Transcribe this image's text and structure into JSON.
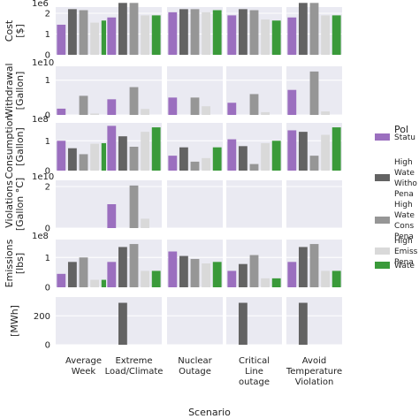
{
  "colors": {
    "panel_bg": "#eaeaf2",
    "grid": "#ffffff",
    "status_quo": "#9b6fbf",
    "high_water_withdrawal": "#636363",
    "high_water_consumption": "#969696",
    "high_emissions": "#d9d9d9",
    "water": "#3a9a3a"
  },
  "chart_data": {
    "type": "bar",
    "layout": "facet-grid",
    "xlabel": "Scenario",
    "categories": [
      "Average\nWeek",
      "Extreme\nLoad/Climate",
      "Nuclear\nOutage",
      "Critical\nLine\noutage",
      "Avoid\nTemperature\nViolation"
    ],
    "legend": {
      "title": "Pol",
      "placement": "right",
      "entries": [
        {
          "label": "Statu",
          "color_key": "status_quo"
        },
        {
          "label": "High\nWate\nWitho\nPena",
          "color_key": "high_water_withdrawal"
        },
        {
          "label": "High\nWate\nCons\nPena",
          "color_key": "high_water_consumption"
        },
        {
          "label": "High\nEmiss\nPena",
          "color_key": "high_emissions"
        },
        {
          "label": "Wate",
          "color_key": "water"
        }
      ]
    },
    "series_names": [
      "Statu",
      "High Wate Witho Pena",
      "High Wate Cons Pena",
      "High Emiss Pena",
      "Wate"
    ],
    "rows": [
      {
        "ylabel": "Cost\n[$]",
        "scale_label": "1e6",
        "ylim": [
          0,
          2.3
        ],
        "yticks": [
          0,
          1,
          2
        ],
        "values": [
          [
            1.45,
            2.2,
            2.15,
            1.55,
            1.65
          ],
          [
            1.8,
            2.5,
            2.5,
            1.9,
            1.9
          ],
          [
            2.05,
            2.2,
            2.2,
            2.05,
            2.15
          ],
          [
            1.9,
            2.2,
            2.15,
            1.7,
            1.65
          ],
          [
            1.8,
            2.5,
            2.5,
            1.9,
            1.9
          ]
        ]
      },
      {
        "ylabel": "Withdrawal\n[Gallon]",
        "scale_label": "1e10",
        "ylim": [
          0,
          1.4
        ],
        "yticks": [
          0,
          1
        ],
        "values": [
          [
            0.18,
            0.0,
            0.55,
            0.04,
            0.0
          ],
          [
            0.45,
            0.0,
            0.8,
            0.17,
            0.0
          ],
          [
            0.5,
            0.0,
            0.5,
            0.25,
            0.0
          ],
          [
            0.35,
            0.0,
            0.6,
            0.08,
            0.0
          ],
          [
            0.72,
            0.0,
            1.25,
            0.1,
            0.0
          ]
        ]
      },
      {
        "ylabel": "Consumption\n[Gallon]",
        "scale_label": "1e8",
        "ylim": [
          0,
          1.6
        ],
        "yticks": [
          0,
          1
        ],
        "values": [
          [
            1.0,
            0.75,
            0.55,
            0.9,
            0.92
          ],
          [
            1.5,
            1.15,
            0.8,
            1.3,
            1.45
          ],
          [
            0.5,
            0.78,
            0.3,
            0.42,
            0.78
          ],
          [
            1.05,
            0.82,
            0.22,
            0.92,
            1.0
          ],
          [
            1.35,
            1.3,
            0.5,
            1.2,
            1.45
          ]
        ]
      },
      {
        "ylabel": "Violations\n[Gallon °C]",
        "scale_label": "1e10",
        "ylim": [
          0,
          2.3
        ],
        "yticks": [
          0,
          2
        ],
        "values": [
          [
            0.0,
            0.0,
            0.0,
            0.0,
            0.0
          ],
          [
            1.15,
            0.0,
            2.05,
            0.45,
            0.0
          ],
          [
            0.0,
            0.0,
            0.0,
            0.0,
            0.0
          ],
          [
            0.0,
            0.0,
            0.0,
            0.0,
            0.0
          ],
          [
            0.0,
            0.0,
            0.0,
            0.0,
            0.0
          ]
        ]
      },
      {
        "ylabel": "Emissions\n[lbs]",
        "scale_label": "1e8",
        "ylim": [
          0,
          1.6
        ],
        "yticks": [
          0,
          1
        ],
        "values": [
          [
            0.45,
            0.85,
            1.0,
            0.25,
            0.25
          ],
          [
            0.85,
            1.35,
            1.45,
            0.55,
            0.55
          ],
          [
            1.2,
            1.05,
            0.95,
            0.8,
            0.85
          ],
          [
            0.55,
            0.78,
            1.08,
            0.3,
            0.3
          ],
          [
            0.85,
            1.35,
            1.45,
            0.55,
            0.55
          ]
        ]
      },
      {
        "ylabel": "[MWh]",
        "scale_label": "",
        "ylim": [
          0,
          330
        ],
        "yticks": [
          0,
          200
        ],
        "values": [
          [
            0,
            0,
            0,
            0,
            0
          ],
          [
            0,
            290,
            0,
            0,
            0
          ],
          [
            0,
            0,
            0,
            0,
            0
          ],
          [
            0,
            290,
            0,
            0,
            0
          ],
          [
            0,
            290,
            0,
            0,
            0
          ]
        ]
      }
    ]
  }
}
